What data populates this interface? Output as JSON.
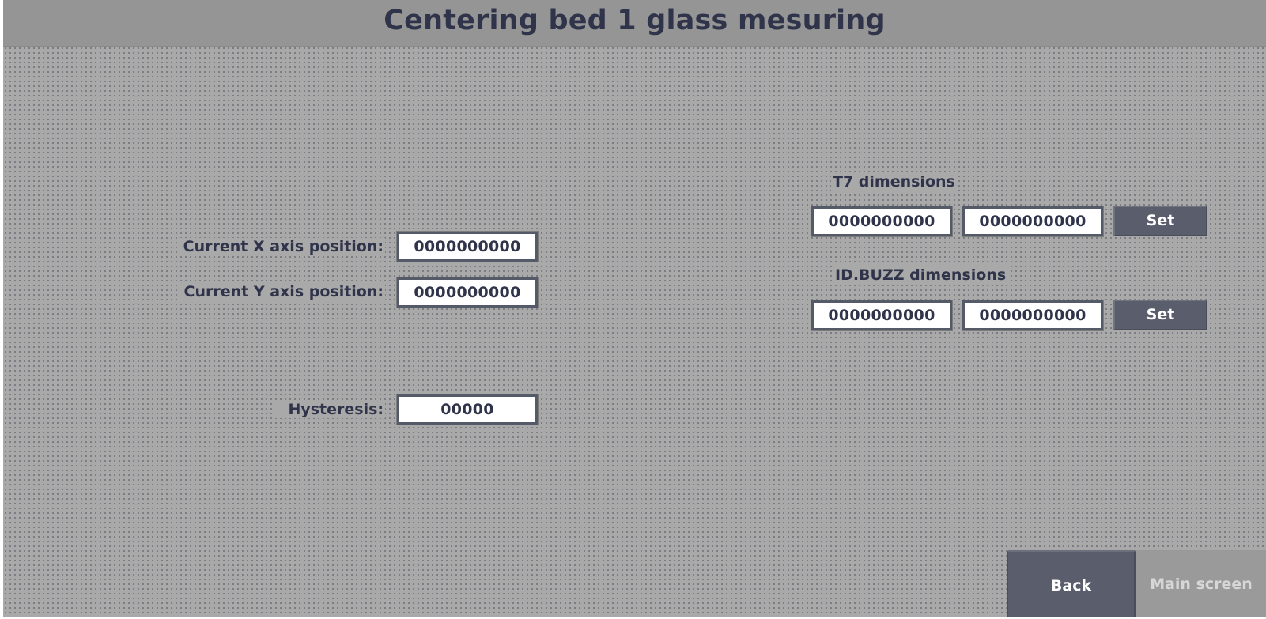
{
  "header": {
    "title": "Centering bed 1 glass mesuring"
  },
  "position": {
    "x_label": "Current X axis position:",
    "x_value": "0000000000",
    "y_label": "Current Y axis position:",
    "y_value": "0000000000"
  },
  "hysteresis": {
    "label": "Hysteresis:",
    "value": "00000"
  },
  "t7": {
    "label": "T7 dimensions",
    "value1": "0000000000",
    "value2": "0000000000",
    "set_label": "Set"
  },
  "idbuzz": {
    "label": "ID.BUZZ dimensions",
    "value1": "0000000000",
    "value2": "0000000000",
    "set_label": "Set"
  },
  "nav": {
    "back_label": "Back",
    "main_label": "Main screen"
  },
  "colors": {
    "background": "#a9a9a9",
    "titlebar": "#959595",
    "text": "#30344a",
    "button": "#5a5e6c",
    "field": "#ffffff"
  }
}
